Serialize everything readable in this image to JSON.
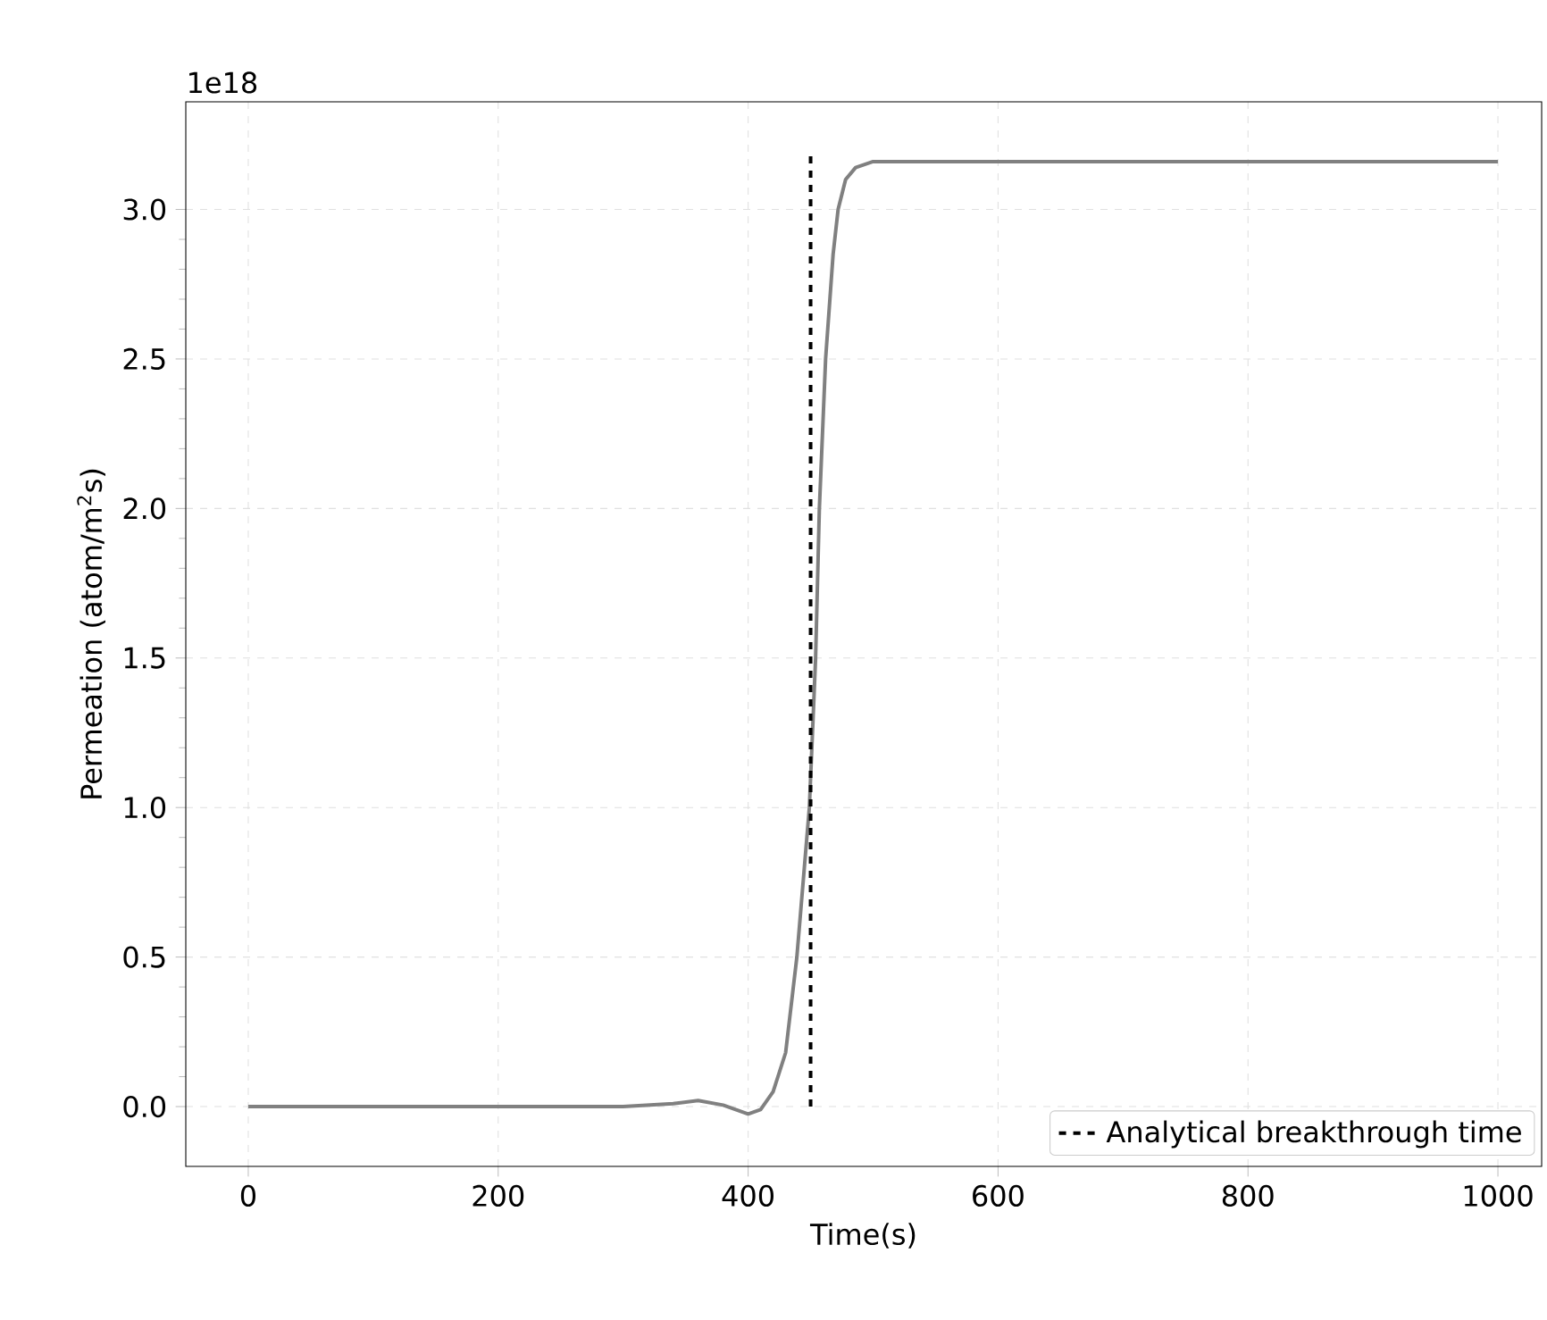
{
  "chart_data": {
    "type": "line",
    "xlabel": "Time(s)",
    "ylabel": "Permeation (atom/m$^{2}$s)",
    "annotations": [
      "1e18"
    ],
    "xlim": [
      -50,
      1035
    ],
    "ylim": [
      -0.2,
      3.36
    ],
    "xticks": [
      0,
      200,
      400,
      600,
      800,
      1000
    ],
    "yticks": [
      {
        "value": 0,
        "label": "0.0"
      },
      {
        "value": 0.5,
        "label": "0.5"
      },
      {
        "value": 1,
        "label": "1.0"
      },
      {
        "value": 1.5,
        "label": "1.5"
      },
      {
        "value": 2,
        "label": "2.0"
      },
      {
        "value": 2.5,
        "label": "2.5"
      },
      {
        "value": 3,
        "label": "3.0"
      }
    ],
    "grid": true,
    "legend": "bottom right",
    "series": [
      {
        "color": "#808080",
        "line_style": "solid",
        "x": [
          0,
          300,
          340,
          360,
          380,
          400,
          410,
          420,
          430,
          439,
          449,
          454,
          457,
          462,
          468,
          472,
          478,
          486,
          500,
          1000
        ],
        "values": [
          0,
          0,
          0.01,
          0.02,
          0.005,
          -0.025,
          -0.01,
          0.05,
          0.18,
          0.5,
          1.0,
          1.5,
          2.0,
          2.5,
          2.85,
          3.0,
          3.1,
          3.14,
          3.16,
          3.16
        ]
      },
      {
        "name": "Analytical breakthrough time",
        "color": "#000000",
        "line_style": "dashed",
        "x": [
          450,
          450
        ],
        "values": [
          0,
          3.2
        ]
      }
    ]
  }
}
